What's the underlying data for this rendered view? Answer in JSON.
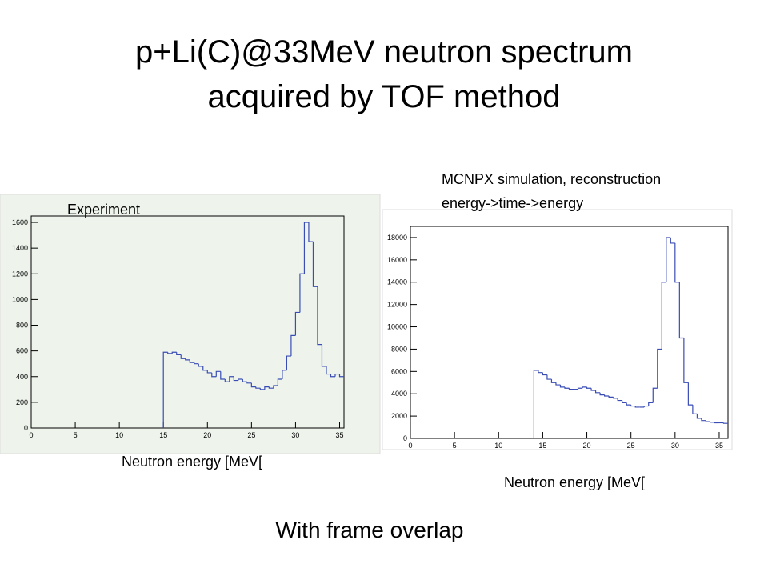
{
  "title_lines": [
    "p+Li(C)@33MeV neutron spectrum",
    "acquired by TOF method"
  ],
  "footer": "With frame overlap",
  "chart_data": [
    {
      "type": "histogram",
      "title": "Experiment",
      "xlabel": "Neutron energy [MeV[",
      "color": "#3a4db5",
      "background": "#eef4ec",
      "bins": [
        15,
        15.5,
        16,
        16.5,
        17,
        17.5,
        18,
        18.5,
        19,
        19.5,
        20,
        20.5,
        21,
        21.5,
        22,
        22.5,
        23,
        23.5,
        24,
        24.5,
        25,
        25.5,
        26,
        26.5,
        27,
        27.5,
        28,
        28.5,
        29,
        29.5,
        30,
        30.5,
        31,
        31.5,
        32,
        32.5,
        33,
        33.5,
        34,
        34.5,
        35,
        35.5
      ],
      "values": [
        590,
        580,
        590,
        570,
        540,
        530,
        510,
        500,
        480,
        450,
        430,
        400,
        440,
        380,
        360,
        400,
        370,
        380,
        360,
        350,
        320,
        310,
        300,
        320,
        310,
        330,
        380,
        450,
        560,
        720,
        900,
        1200,
        1600,
        1450,
        1100,
        650,
        480,
        420,
        400,
        420,
        400
      ],
      "xlim": [
        0,
        35.5
      ],
      "ylim": [
        0,
        1650
      ],
      "xticks": [
        0,
        5,
        10,
        15,
        20,
        25,
        30,
        35
      ],
      "yticks": [
        0,
        200,
        400,
        600,
        800,
        1000,
        1200,
        1400,
        1600
      ]
    },
    {
      "type": "histogram",
      "title": "MCNPX simulation, reconstruction",
      "subtitle": "energy->time->energy",
      "xlabel": "Neutron energy [MeV[",
      "color": "#3a4db5",
      "background": "#ffffff",
      "bins": [
        14,
        14.5,
        15,
        15.5,
        16,
        16.5,
        17,
        17.5,
        18,
        18.5,
        19,
        19.5,
        20,
        20.5,
        21,
        21.5,
        22,
        22.5,
        23,
        23.5,
        24,
        24.5,
        25,
        25.5,
        26,
        26.5,
        27,
        27.5,
        28,
        28.5,
        29,
        29.5,
        30,
        30.5,
        31,
        31.5,
        32,
        32.5,
        33,
        33.5,
        34,
        34.5,
        35,
        35.5,
        36
      ],
      "values": [
        6100,
        5900,
        5700,
        5300,
        5000,
        4800,
        4600,
        4500,
        4400,
        4400,
        4500,
        4600,
        4500,
        4300,
        4100,
        3900,
        3800,
        3700,
        3600,
        3400,
        3200,
        3000,
        2900,
        2800,
        2800,
        2900,
        3200,
        4500,
        8000,
        14000,
        18000,
        17500,
        14000,
        9000,
        5000,
        3000,
        2200,
        1800,
        1600,
        1500,
        1450,
        1400,
        1400,
        1350
      ],
      "xlim": [
        0,
        36
      ],
      "ylim": [
        0,
        19000
      ],
      "xticks": [
        0,
        5,
        10,
        15,
        20,
        25,
        30,
        35
      ],
      "yticks": [
        0,
        2000,
        4000,
        6000,
        8000,
        10000,
        12000,
        14000,
        16000,
        18000
      ]
    }
  ]
}
